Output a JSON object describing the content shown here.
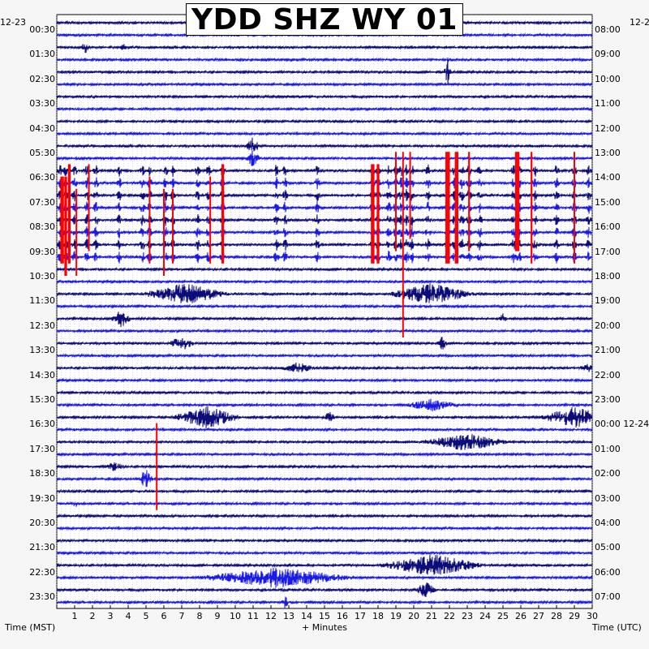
{
  "chart_data": {
    "type": "line",
    "title": "YDD SHZ WY 01",
    "date_left": "12-23",
    "date_right_top": "12-2",
    "xlabel": "+ Minutes",
    "left_axis_label": "Time (MST)",
    "right_axis_label": "Time (UTC)",
    "x_ticks": [
      1,
      2,
      3,
      4,
      5,
      6,
      7,
      8,
      9,
      10,
      11,
      12,
      13,
      14,
      15,
      16,
      17,
      18,
      19,
      20,
      21,
      22,
      23,
      24,
      25,
      26,
      27,
      28,
      29,
      30
    ],
    "xlim": [
      0,
      30
    ],
    "left_ticks": [
      "00:30",
      "01:30",
      "02:30",
      "03:30",
      "04:30",
      "05:30",
      "06:30",
      "07:30",
      "08:30",
      "09:30",
      "10:30",
      "11:30",
      "12:30",
      "13:30",
      "14:30",
      "15:30",
      "16:30",
      "17:30",
      "18:30",
      "19:30",
      "20:30",
      "21:30",
      "22:30",
      "23:30"
    ],
    "right_ticks": [
      "08:00",
      "09:00",
      "10:00",
      "11:00",
      "12:00",
      "13:00",
      "14:00",
      "15:00",
      "16:00",
      "17:00",
      "18:00",
      "19:00",
      "20:00",
      "21:00",
      "22:00",
      "23:00",
      "00:00 12-24",
      "01:00",
      "02:00",
      "03:00",
      "04:00",
      "05:00",
      "06:00",
      "07:00"
    ],
    "trace_count": 48,
    "trace_colors": [
      "#0d0d7a",
      "#1a1ae6"
    ],
    "clip_color": "#ff0000",
    "grid": true,
    "events": [
      {
        "trace": 2,
        "minute": 1.6,
        "amp": 1.2,
        "dur": 0.3
      },
      {
        "trace": 2,
        "minute": 3.7,
        "amp": 1.0,
        "dur": 0.2
      },
      {
        "trace": 4,
        "minute": 21.9,
        "amp": 3.5,
        "dur": 0.2
      },
      {
        "trace": 10,
        "minute": 11.0,
        "amp": 2.5,
        "dur": 0.4
      },
      {
        "trace": 11,
        "minute": 11.0,
        "amp": 2.2,
        "dur": 0.4
      },
      {
        "trace": 22,
        "minute": 7.2,
        "amp": 2.5,
        "dur": 2.5
      },
      {
        "trace": 22,
        "minute": 21.0,
        "amp": 2.5,
        "dur": 2.5
      },
      {
        "trace": 24,
        "minute": 3.6,
        "amp": 2.0,
        "dur": 0.6
      },
      {
        "trace": 24,
        "minute": 25.0,
        "amp": 1.2,
        "dur": 0.2
      },
      {
        "trace": 26,
        "minute": 7.0,
        "amp": 1.6,
        "dur": 0.8
      },
      {
        "trace": 26,
        "minute": 21.6,
        "amp": 1.5,
        "dur": 0.3
      },
      {
        "trace": 28,
        "minute": 13.5,
        "amp": 1.2,
        "dur": 1.0
      },
      {
        "trace": 28,
        "minute": 29.8,
        "amp": 1.0,
        "dur": 0.5
      },
      {
        "trace": 31,
        "minute": 21.0,
        "amp": 1.4,
        "dur": 1.5
      },
      {
        "trace": 32,
        "minute": 8.4,
        "amp": 2.6,
        "dur": 2.0
      },
      {
        "trace": 32,
        "minute": 15.3,
        "amp": 1.6,
        "dur": 0.3
      },
      {
        "trace": 32,
        "minute": 29.0,
        "amp": 2.4,
        "dur": 2.0
      },
      {
        "trace": 34,
        "minute": 22.9,
        "amp": 2.0,
        "dur": 2.5
      },
      {
        "trace": 36,
        "minute": 3.2,
        "amp": 1.0,
        "dur": 0.6
      },
      {
        "trace": 37,
        "minute": 5.0,
        "amp": 2.5,
        "dur": 0.4
      },
      {
        "trace": 39,
        "minute": 1.0,
        "amp": 0.8,
        "dur": 0.3
      },
      {
        "trace": 44,
        "minute": 21.0,
        "amp": 2.6,
        "dur": 3.0
      },
      {
        "trace": 45,
        "minute": 12.3,
        "amp": 2.4,
        "dur": 4.5
      },
      {
        "trace": 46,
        "minute": 20.7,
        "amp": 2.0,
        "dur": 0.6
      },
      {
        "trace": 47,
        "minute": 12.8,
        "amp": 1.5,
        "dur": 0.2
      }
    ],
    "burst_bands": [
      {
        "from_trace": 12,
        "to_trace": 19,
        "minutes": [
          0.2,
          0.5,
          1.0,
          1.7,
          2.2,
          3.5,
          4.8,
          5.2,
          6.1,
          6.5,
          7.9,
          8.5,
          9.3,
          12.3,
          12.8,
          14.6,
          17.7,
          18.0,
          18.6,
          19.0,
          19.3,
          19.6,
          19.9,
          20.8,
          21.9,
          22.3,
          22.7,
          23.1,
          23.7,
          25.6,
          25.9,
          26.8,
          28.0,
          29.0,
          29.8
        ]
      }
    ],
    "clips": [
      {
        "minute": 0.3,
        "from_trace": 13,
        "to_trace": 19,
        "width": 0.2
      },
      {
        "minute": 0.5,
        "from_trace": 13,
        "to_trace": 20,
        "width": 0.15
      },
      {
        "minute": 0.7,
        "from_trace": 12,
        "to_trace": 19,
        "width": 0.15
      },
      {
        "minute": 1.1,
        "from_trace": 14,
        "to_trace": 20,
        "width": 0.05
      },
      {
        "minute": 1.8,
        "from_trace": 12,
        "to_trace": 18,
        "width": 0.05
      },
      {
        "minute": 5.2,
        "from_trace": 13,
        "to_trace": 19,
        "width": 0.05
      },
      {
        "minute": 6.0,
        "from_trace": 14,
        "to_trace": 20,
        "width": 0.05
      },
      {
        "minute": 6.5,
        "from_trace": 14,
        "to_trace": 19,
        "width": 0.05
      },
      {
        "minute": 8.6,
        "from_trace": 13,
        "to_trace": 19,
        "width": 0.05
      },
      {
        "minute": 9.3,
        "from_trace": 12,
        "to_trace": 19,
        "width": 0.15
      },
      {
        "minute": 17.7,
        "from_trace": 12,
        "to_trace": 19,
        "width": 0.2
      },
      {
        "minute": 18.0,
        "from_trace": 12,
        "to_trace": 19,
        "width": 0.15
      },
      {
        "minute": 19.0,
        "from_trace": 11,
        "to_trace": 18,
        "width": 0.05
      },
      {
        "minute": 19.4,
        "from_trace": 11,
        "to_trace": 25,
        "width": 0.05
      },
      {
        "minute": 19.8,
        "from_trace": 11,
        "to_trace": 17,
        "width": 0.05
      },
      {
        "minute": 21.9,
        "from_trace": 11,
        "to_trace": 19,
        "width": 0.25
      },
      {
        "minute": 22.4,
        "from_trace": 11,
        "to_trace": 19,
        "width": 0.2
      },
      {
        "minute": 23.1,
        "from_trace": 11,
        "to_trace": 18,
        "width": 0.1
      },
      {
        "minute": 25.8,
        "from_trace": 11,
        "to_trace": 18,
        "width": 0.25
      },
      {
        "minute": 26.6,
        "from_trace": 11,
        "to_trace": 19,
        "width": 0.1
      },
      {
        "minute": 29.0,
        "from_trace": 11,
        "to_trace": 19,
        "width": 0.05
      },
      {
        "minute": 5.6,
        "from_trace": 33,
        "to_trace": 39,
        "width": 0.05
      }
    ]
  }
}
